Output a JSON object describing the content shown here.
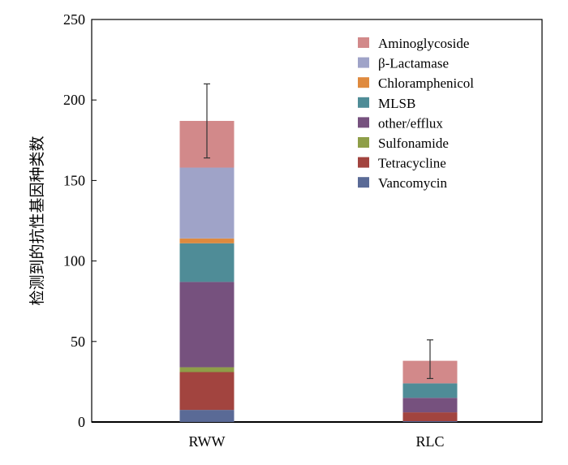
{
  "chart_data": {
    "type": "bar",
    "stacked": true,
    "ylabel": "检测到的抗性基因种类数",
    "xlabel": "",
    "ylim": [
      0,
      250
    ],
    "yticks": [
      0,
      50,
      100,
      150,
      200,
      250
    ],
    "categories": [
      "RWW",
      "RLC"
    ],
    "legend_position": "top-right",
    "grid": false,
    "series": [
      {
        "name": "Vancomycin",
        "color": "#5a6a96",
        "values": [
          7.5,
          0.5
        ]
      },
      {
        "name": "Tetracycline",
        "color": "#a2443f",
        "values": [
          23.5,
          5.5
        ]
      },
      {
        "name": "Sulfonamide",
        "color": "#8e9e48",
        "values": [
          3,
          0
        ]
      },
      {
        "name": "other/efflux",
        "color": "#76517e",
        "values": [
          53,
          9
        ]
      },
      {
        "name": "MLSB",
        "color": "#4f8c97",
        "values": [
          24,
          9
        ]
      },
      {
        "name": "Chloramphenicol",
        "color": "#df8a3e",
        "values": [
          3,
          0
        ]
      },
      {
        "name": "β-Lactamase",
        "color": "#9fa3c8",
        "values": [
          44,
          0
        ]
      },
      {
        "name": "Aminoglycoside",
        "color": "#d2898a",
        "values": [
          29,
          14
        ]
      }
    ],
    "error_bars": [
      {
        "center": 187,
        "low": 164,
        "high": 210
      },
      {
        "center": 38,
        "low": 27,
        "high": 51
      }
    ]
  }
}
